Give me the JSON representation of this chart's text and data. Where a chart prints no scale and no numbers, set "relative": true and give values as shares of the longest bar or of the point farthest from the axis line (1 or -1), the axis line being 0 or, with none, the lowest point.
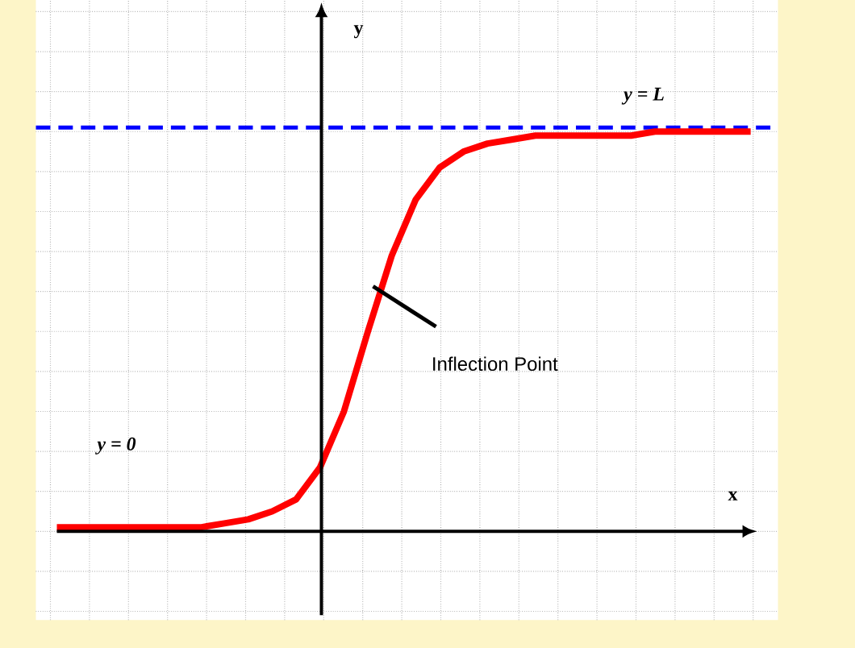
{
  "chart_data": {
    "type": "line",
    "relative": true,
    "xlabel": "x",
    "ylabel": "y",
    "categories": [
      null,
      null,
      null,
      null,
      null,
      null,
      null,
      null,
      null,
      null,
      null,
      null,
      null,
      null,
      null,
      null,
      null,
      null,
      null,
      null,
      null,
      null,
      null,
      null,
      null,
      null,
      null,
      null,
      null,
      null
    ],
    "series": [
      {
        "color": "#ff0000",
        "values": [
          0.01,
          0.01,
          0.01,
          0.01,
          0.01,
          0.01,
          0.01,
          0.02,
          0.03,
          0.05,
          0.08,
          0.16,
          0.3,
          0.5,
          0.69,
          0.83,
          0.91,
          0.95,
          0.97,
          0.98,
          0.99,
          0.99,
          0.99,
          0.99,
          0.99,
          1.0,
          1.0,
          1.0,
          1.0,
          1.0
        ]
      }
    ],
    "ref_lines": [
      {
        "axis": "y",
        "value": 1.01,
        "label": "y = L",
        "color": "#0000ff",
        "line_style": "dashed"
      }
    ],
    "annotations": [
      "y = 0",
      "Inflection Point"
    ],
    "grid": true,
    "marker": "none",
    "line_style": "solid"
  }
}
